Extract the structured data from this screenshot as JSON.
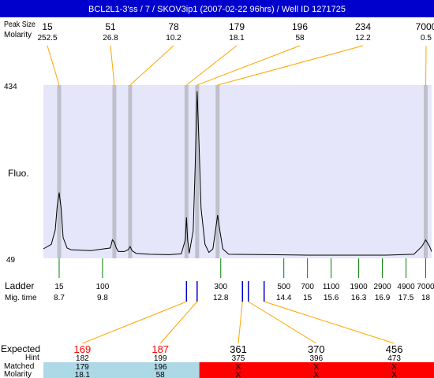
{
  "header": {
    "title": "BCL2L1-3'ss / 7 / SKOV3ip1 (2007-02-22 96hrs) / Well ID 1271725",
    "row_label_size": "Peak Size",
    "row_label_molarity": "Molarity",
    "title_bg": "#0000cc",
    "title_color": "#ffffff"
  },
  "peaks": [
    {
      "size": "15",
      "molarity": "252.5",
      "mig": 8.7
    },
    {
      "size": "51",
      "molarity": "26.8",
      "mig": 10.1
    },
    {
      "size": "78",
      "molarity": "10.2",
      "mig": 10.5
    },
    {
      "size": "179",
      "molarity": "18.1",
      "mig": 11.93
    },
    {
      "size": "196",
      "molarity": "58",
      "mig": 12.2
    },
    {
      "size": "234",
      "molarity": "12.2",
      "mig": 12.72
    },
    {
      "size": "7000",
      "molarity": "0.5",
      "mig": 18.0
    }
  ],
  "chart_data": {
    "type": "line",
    "ylabel": "Fluo.",
    "ylim": [
      49,
      434
    ],
    "y_ticks": [
      "434",
      "49"
    ],
    "xlim": [
      8.3,
      18.15
    ],
    "x_unit": "migration time",
    "series": [
      {
        "x": [
          8.3,
          8.5,
          8.6,
          8.65,
          8.7,
          8.75,
          8.8,
          8.9,
          9.0,
          9.5,
          10.0,
          10.05,
          10.1,
          10.15,
          10.2,
          10.35,
          10.45,
          10.5,
          10.55,
          10.65,
          11.0,
          11.5,
          11.8,
          11.9,
          11.93,
          11.96,
          12.0,
          12.1,
          12.15,
          12.2,
          12.25,
          12.3,
          12.4,
          12.5,
          12.6,
          12.68,
          12.72,
          12.76,
          12.85,
          13.0,
          14.0,
          15.0,
          16.0,
          17.0,
          17.7,
          17.9,
          18.0,
          18.1,
          18.15
        ],
        "y": [
          70,
          80,
          112,
          165,
          195,
          160,
          95,
          72,
          68,
          66,
          72,
          90,
          85,
          72,
          64,
          64,
          68,
          75,
          66,
          60,
          58,
          57,
          59,
          90,
          140,
          90,
          60,
          110,
          250,
          420,
          300,
          160,
          80,
          62,
          70,
          120,
          145,
          120,
          70,
          58,
          57,
          56,
          56,
          56,
          58,
          75,
          90,
          75,
          64
        ]
      }
    ]
  },
  "ladder": {
    "label": "Ladder",
    "mig_label": "Mig. time",
    "tick_color": "#008000",
    "items": [
      {
        "size": "15",
        "mig": "8.7"
      },
      {
        "size": "100",
        "mig": "9.8"
      },
      {
        "size": "300",
        "mig": "12.8"
      },
      {
        "size": "500",
        "mig": "14.4"
      },
      {
        "size": "700",
        "mig": "15"
      },
      {
        "size": "1100",
        "mig": "15.6"
      },
      {
        "size": "1900",
        "mig": "16.3"
      },
      {
        "size": "2900",
        "mig": "16.9"
      },
      {
        "size": "4900",
        "mig": "17.5"
      },
      {
        "size": "7000",
        "mig": "18"
      }
    ]
  },
  "expected": {
    "label": "Expected",
    "hint_label": "Hint",
    "matched_label": "Matched",
    "molarity_label": "Molarity",
    "marker_color": "#0000cc",
    "matched_color": "#add8e6",
    "unmatched_color": "#ff0000",
    "highlight_text_color": "#ff0000",
    "items": [
      {
        "expected": "169",
        "hint": "182",
        "matched": "179",
        "molarity": "18.1",
        "found": true,
        "mig": 11.93
      },
      {
        "expected": "187",
        "hint": "199",
        "matched": "196",
        "molarity": "58",
        "found": true,
        "mig": 12.2
      },
      {
        "expected": "361",
        "hint": "375",
        "matched": "X",
        "molarity": "X",
        "found": false,
        "mig": 13.35
      },
      {
        "expected": "370",
        "hint": "396",
        "matched": "X",
        "molarity": "X",
        "found": false,
        "mig": 13.5
      },
      {
        "expected": "456",
        "hint": "473",
        "matched": "X",
        "molarity": "X",
        "found": false,
        "mig": 13.9
      }
    ]
  },
  "colors": {
    "plot_bg": "#e6e6fa",
    "peak_band": "#c0c0cc",
    "connector": "#ffa500",
    "trace": "#000000"
  }
}
